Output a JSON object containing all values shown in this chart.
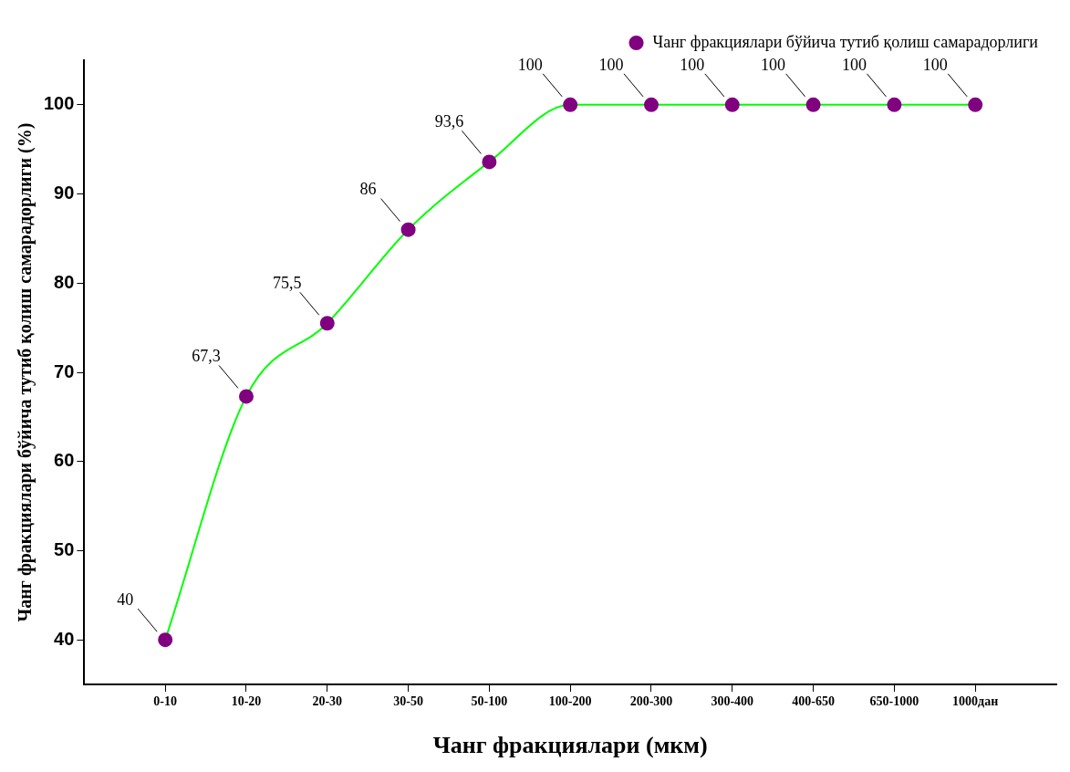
{
  "chart_data": {
    "type": "line",
    "xlabel": "Чанг фракциялари (мкм)",
    "ylabel": "Чанг фракциялари бўйича тутиб қолиш самарадорлиги (%)",
    "categories": [
      "0-10",
      "10-20",
      "20-30",
      "30-50",
      "50-100",
      "100-200",
      "200-300",
      "300-400",
      "400-650",
      "650-1000",
      "1000дан"
    ],
    "series": [
      {
        "name": "Чанг фракциялари бўйича тутиб қолиш самарадорлиги",
        "color": "#00ff00",
        "colors": [
          "#800080",
          "#800080",
          "#800080",
          "#800080",
          "#800080",
          "#800080",
          "#800080",
          "#800080",
          "#800080",
          "#800080",
          "#800080"
        ],
        "values": [
          40,
          67.3,
          75.5,
          86,
          93.6,
          100,
          100,
          100,
          100,
          100,
          100
        ],
        "value_labels": [
          "40",
          "67,3",
          "75,5",
          "86",
          "93,6",
          "100",
          "100",
          "100",
          "100",
          "100",
          "100"
        ]
      }
    ],
    "ylim": [
      35,
      105
    ],
    "yticks": [
      40,
      50,
      60,
      70,
      80,
      90,
      100
    ],
    "grid": false,
    "legend": "top right",
    "marker": "circle",
    "line_style": "solid"
  }
}
